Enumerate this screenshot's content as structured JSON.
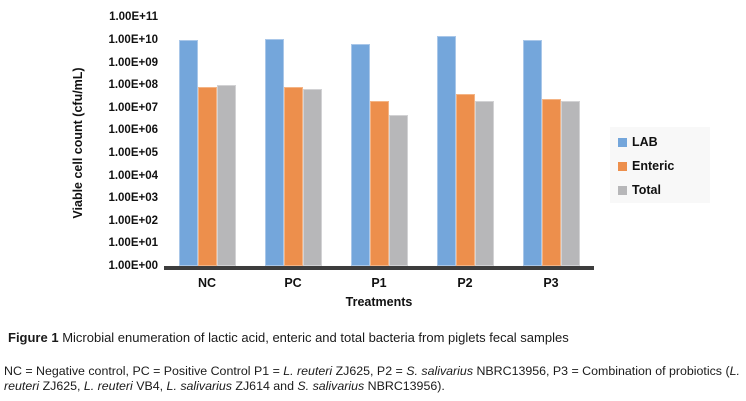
{
  "chart_data": {
    "type": "bar",
    "title": "",
    "xlabel": "Treatments",
    "ylabel": "Viable cell count (cfu/mL)",
    "categories": [
      "NC",
      "PC",
      "P1",
      "P2",
      "P3"
    ],
    "series": [
      {
        "name": "LAB",
        "color": "#74A6DB",
        "border_color": "#A9C7E9",
        "values": [
          10000000000.0,
          11000000000.0,
          7000000000.0,
          15000000000.0,
          10000000000.0
        ]
      },
      {
        "name": "Enteric",
        "color": "#ED8F4C",
        "border_color": "#F4B485",
        "values": [
          80000000.0,
          80000000.0,
          20000000.0,
          40000000.0,
          25000000.0
        ]
      },
      {
        "name": "Total",
        "color": "#B7B7B9",
        "border_color": "#D2D2D4",
        "values": [
          100000000.0,
          70000000.0,
          5000000.0,
          20000000.0,
          20000000.0
        ]
      }
    ],
    "y_axis": {
      "scale": "log",
      "min": 1,
      "max": 100000000000.0,
      "tick_labels": [
        "1.00E+00",
        "1.00E+01",
        "1.00E+02",
        "1.00E+03",
        "1.00E+04",
        "1.00E+05",
        "1.00E+06",
        "1.00E+07",
        "1.00E+08",
        "1.00E+09",
        "1.00E+10",
        "1.00E+11"
      ]
    },
    "legend": {
      "position": "right",
      "entries": [
        "LAB",
        "Enteric",
        "Total"
      ]
    },
    "grid": false
  },
  "colors": {
    "axis_line": "#3d3d3d",
    "legend_background": "#f8f8f8"
  },
  "figure": {
    "caption_segments": [
      {
        "text": "Figure 1 ",
        "bold": true
      },
      {
        "text": "Microbial enumeration of lactic acid, enteric and total bacteria from piglets fecal samples"
      }
    ],
    "footnote_segments": [
      {
        "text": "NC = Negative control, PC = Positive Control P1 = "
      },
      {
        "text": "L. reuteri",
        "italic": true
      },
      {
        "text": " ZJ625, P2 = "
      },
      {
        "text": "S. salivarius",
        "italic": true
      },
      {
        "text": " NBRC13956, P3 = Combination of probiotics ("
      },
      {
        "text": "L. reuteri",
        "italic": true
      },
      {
        "text": " ZJ625, "
      },
      {
        "text": "L. reuteri",
        "italic": true
      },
      {
        "text": " VB4, "
      },
      {
        "text": "L. salivarius",
        "italic": true
      },
      {
        "text": " ZJ614 and "
      },
      {
        "text": "S. salivarius",
        "italic": true
      },
      {
        "text": " NBRC13956)."
      }
    ]
  }
}
